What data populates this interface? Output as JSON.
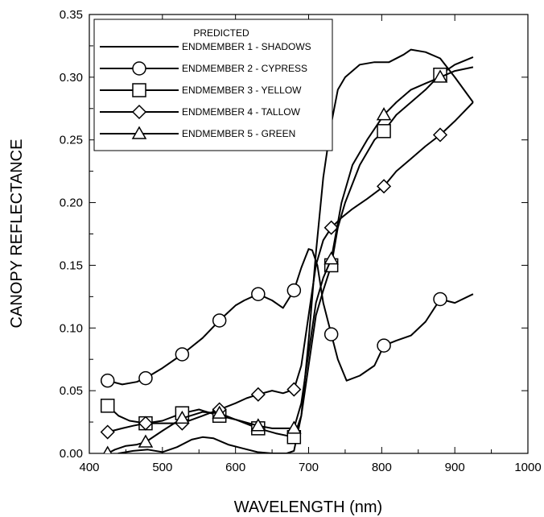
{
  "chart_data": {
    "type": "line",
    "xlabel": "WAVELENGTH (nm)",
    "ylabel": "CANOPY REFLECTANCE",
    "xlim": [
      400,
      1000
    ],
    "ylim": [
      0,
      0.35
    ],
    "x_ticks": [
      400,
      500,
      600,
      700,
      800,
      900,
      1000
    ],
    "x_tick_labels": [
      "400",
      "500",
      "600",
      "700",
      "800",
      "900",
      "1000"
    ],
    "y_ticks": [
      0,
      0.05,
      0.1,
      0.15,
      0.2,
      0.25,
      0.3,
      0.35
    ],
    "y_tick_labels": [
      "0.00",
      "0.05",
      "0.10",
      "0.15",
      "0.20",
      "0.25",
      "0.30",
      "0.35"
    ],
    "grid": false,
    "legend": {
      "title": "PREDICTED",
      "placement": "top-left"
    },
    "series": [
      {
        "name": "ENDMEMBER 1 - SHADOWS",
        "marker": "none",
        "x": [
          425,
          440,
          460,
          480,
          500,
          520,
          540,
          555,
          570,
          590,
          610,
          630,
          650,
          670,
          680,
          690,
          700,
          710,
          720,
          730,
          740,
          750,
          770,
          790,
          810,
          830,
          840,
          860,
          880,
          900,
          925
        ],
        "y": [
          -0.004,
          0.0,
          0.002,
          0.003,
          0.001,
          0.005,
          0.011,
          0.013,
          0.012,
          0.007,
          0.004,
          0.001,
          0.0,
          0.0,
          0.002,
          0.03,
          0.09,
          0.16,
          0.22,
          0.26,
          0.29,
          0.3,
          0.31,
          0.312,
          0.312,
          0.318,
          0.322,
          0.32,
          0.315,
          0.3,
          0.28
        ],
        "markers_x": [],
        "markers_y": []
      },
      {
        "name": "ENDMEMBER 2 - CYPRESS",
        "marker": "circle",
        "x": [
          425,
          445,
          465,
          477,
          500,
          527,
          555,
          578,
          600,
          612,
          631,
          650,
          665,
          680,
          690,
          700,
          705,
          712,
          720,
          731,
          740,
          752,
          770,
          790,
          803,
          820,
          840,
          860,
          880,
          900,
          925
        ],
        "y": [
          0.058,
          0.055,
          0.057,
          0.06,
          0.068,
          0.079,
          0.092,
          0.106,
          0.118,
          0.122,
          0.127,
          0.122,
          0.116,
          0.13,
          0.148,
          0.163,
          0.162,
          0.15,
          0.12,
          0.095,
          0.075,
          0.058,
          0.062,
          0.07,
          0.086,
          0.09,
          0.094,
          0.105,
          0.123,
          0.12,
          0.127
        ],
        "markers_x": [
          425,
          477,
          527,
          578,
          631,
          680,
          731,
          803,
          880
        ],
        "markers_y": [
          0.058,
          0.06,
          0.079,
          0.106,
          0.127,
          0.13,
          0.095,
          0.086,
          0.123
        ]
      },
      {
        "name": "ENDMEMBER 3 - YELLOW",
        "marker": "square",
        "x": [
          425,
          440,
          455,
          477,
          500,
          527,
          550,
          578,
          600,
          631,
          655,
          680,
          690,
          700,
          710,
          720,
          731,
          740,
          750,
          770,
          790,
          803,
          820,
          840,
          860,
          880,
          900,
          925
        ],
        "y": [
          0.038,
          0.03,
          0.026,
          0.024,
          0.026,
          0.032,
          0.035,
          0.03,
          0.027,
          0.02,
          0.016,
          0.013,
          0.03,
          0.07,
          0.11,
          0.13,
          0.15,
          0.18,
          0.2,
          0.23,
          0.25,
          0.257,
          0.27,
          0.28,
          0.29,
          0.302,
          0.31,
          0.316
        ],
        "markers_x": [
          425,
          477,
          527,
          578,
          631,
          680,
          731,
          803,
          880
        ],
        "markers_y": [
          0.038,
          0.024,
          0.032,
          0.03,
          0.02,
          0.013,
          0.15,
          0.257,
          0.302
        ]
      },
      {
        "name": "ENDMEMBER 4 - TALLOW",
        "marker": "diamond",
        "x": [
          425,
          445,
          460,
          477,
          500,
          527,
          555,
          578,
          600,
          615,
          631,
          650,
          665,
          680,
          690,
          700,
          710,
          720,
          731,
          745,
          760,
          780,
          803,
          820,
          840,
          860,
          880,
          900,
          925
        ],
        "y": [
          0.017,
          0.02,
          0.022,
          0.024,
          0.024,
          0.024,
          0.03,
          0.035,
          0.04,
          0.044,
          0.047,
          0.05,
          0.048,
          0.051,
          0.07,
          0.11,
          0.15,
          0.17,
          0.18,
          0.188,
          0.195,
          0.203,
          0.213,
          0.225,
          0.235,
          0.245,
          0.254,
          0.265,
          0.28
        ],
        "markers_x": [
          425,
          477,
          527,
          578,
          631,
          680,
          731,
          803,
          880
        ],
        "markers_y": [
          0.017,
          0.024,
          0.024,
          0.035,
          0.047,
          0.051,
          0.18,
          0.213,
          0.254
        ]
      },
      {
        "name": "ENDMEMBER 5 - GREEN",
        "marker": "triangle",
        "x": [
          425,
          435,
          450,
          465,
          477,
          500,
          527,
          555,
          578,
          600,
          631,
          650,
          680,
          690,
          700,
          710,
          720,
          731,
          745,
          760,
          780,
          803,
          820,
          840,
          860,
          880,
          900,
          925
        ],
        "y": [
          0.0,
          0.003,
          0.006,
          0.007,
          0.009,
          0.018,
          0.028,
          0.033,
          0.032,
          0.027,
          0.022,
          0.02,
          0.02,
          0.04,
          0.08,
          0.12,
          0.14,
          0.155,
          0.2,
          0.23,
          0.25,
          0.27,
          0.28,
          0.29,
          0.295,
          0.3,
          0.305,
          0.308
        ],
        "markers_x": [
          425,
          477,
          527,
          578,
          631,
          680,
          731,
          803,
          880
        ],
        "markers_y": [
          0.0,
          0.009,
          0.028,
          0.032,
          0.022,
          0.02,
          0.155,
          0.27,
          0.3
        ]
      }
    ]
  }
}
